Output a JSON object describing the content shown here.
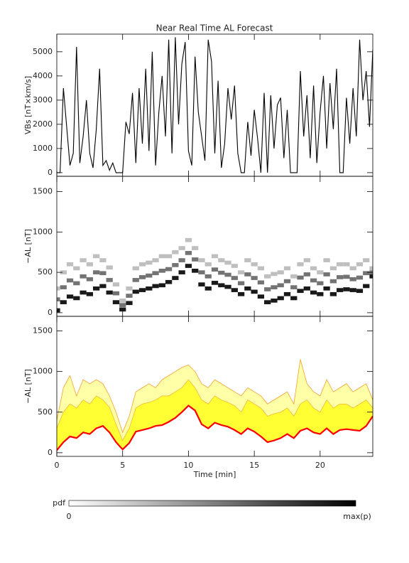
{
  "chart_data": [
    {
      "type": "line",
      "title": "Near Real Time AL Forecast",
      "ylabel": "VBs [nT×km/s]",
      "color": "#000000",
      "xlim": [
        0,
        24
      ],
      "xticks": [
        0,
        5,
        10,
        15,
        20
      ],
      "ylim": [
        -150,
        5730
      ],
      "yticks": [
        0,
        1000,
        2000,
        3000,
        4000,
        5000
      ],
      "x": [
        0,
        0.25,
        0.5,
        0.75,
        1,
        1.25,
        1.5,
        1.75,
        2,
        2.25,
        2.5,
        2.75,
        3,
        3.25,
        3.5,
        3.75,
        4,
        4.25,
        4.5,
        4.75,
        5,
        5.25,
        5.5,
        5.75,
        6,
        6.25,
        6.5,
        6.75,
        7,
        7.25,
        7.5,
        7.75,
        8,
        8.25,
        8.5,
        8.75,
        9,
        9.25,
        9.5,
        9.75,
        10,
        10.25,
        10.5,
        10.75,
        11,
        11.25,
        11.5,
        11.75,
        12,
        12.25,
        12.5,
        12.75,
        13,
        13.25,
        13.5,
        13.75,
        14,
        14.25,
        14.5,
        14.75,
        15,
        15.25,
        15.5,
        15.75,
        16,
        16.25,
        16.5,
        16.75,
        17,
        17.25,
        17.5,
        17.75,
        18,
        18.25,
        18.5,
        18.75,
        19,
        19.25,
        19.5,
        19.75,
        20,
        20.25,
        20.5,
        20.75,
        21,
        21.25,
        21.5,
        21.75,
        22,
        22.25,
        22.5,
        22.75,
        23,
        23.25,
        23.5,
        23.75,
        24
      ],
      "values": [
        0,
        0,
        3500,
        1900,
        300,
        800,
        5200,
        400,
        1500,
        3000,
        800,
        200,
        1800,
        4300,
        300,
        500,
        100,
        400,
        0,
        0,
        0,
        2100,
        1600,
        3300,
        400,
        3500,
        1200,
        4300,
        900,
        5000,
        300,
        2500,
        4000,
        1500,
        5500,
        800,
        5600,
        2000,
        4500,
        5400,
        900,
        300,
        4800,
        2500,
        1500,
        500,
        5500,
        4600,
        800,
        3800,
        200,
        1200,
        3500,
        2200,
        3600,
        800,
        0,
        0,
        2100,
        700,
        2600,
        1400,
        0,
        3300,
        0,
        3200,
        1000,
        2800,
        3100,
        600,
        2600,
        0,
        0,
        0,
        4200,
        1500,
        3200,
        600,
        3600,
        400,
        2500,
        4000,
        1000,
        3700,
        1800,
        4300,
        0,
        0,
        3100,
        1200,
        3500,
        1500,
        5500,
        3000,
        4200,
        1900,
        5100
      ]
    },
    {
      "type": "heatmap",
      "ylabel": "−AL [nT]",
      "xlim": [
        0,
        24
      ],
      "xticks": [
        0,
        5,
        10,
        15,
        20
      ],
      "ylim": [
        -45,
        1690
      ],
      "yticks": [
        0,
        500,
        1000,
        1500
      ],
      "x": [
        0,
        0.5,
        1,
        1.5,
        2,
        2.5,
        3,
        3.5,
        4,
        4.5,
        5,
        5.5,
        6,
        6.5,
        7,
        7.5,
        8,
        8.5,
        9,
        9.5,
        10,
        10.5,
        11,
        11.5,
        12,
        12.5,
        13,
        13.5,
        14,
        14.5,
        15,
        15.5,
        16,
        16.5,
        17,
        17.5,
        18,
        18.5,
        19,
        19.5,
        20,
        20.5,
        21,
        21.5,
        22,
        22.5,
        23,
        23.5,
        24
      ],
      "series": [
        {
          "density": 0.9,
          "values": [
            30,
            130,
            200,
            180,
            250,
            230,
            300,
            330,
            250,
            130,
            40,
            120,
            260,
            280,
            300,
            330,
            340,
            380,
            430,
            500,
            580,
            520,
            350,
            300,
            370,
            340,
            320,
            280,
            230,
            300,
            260,
            200,
            130,
            150,
            180,
            230,
            180,
            270,
            300,
            250,
            230,
            300,
            230,
            280,
            290,
            280,
            270,
            330,
            450
          ]
        },
        {
          "density": 0.55,
          "values": [
            165,
            315,
            400,
            365,
            450,
            415,
            500,
            490,
            405,
            240,
            95,
            210,
            405,
            440,
            460,
            490,
            520,
            540,
            590,
            650,
            740,
            660,
            500,
            450,
            535,
            495,
            470,
            430,
            365,
            475,
            430,
            375,
            290,
            315,
            340,
            390,
            315,
            435,
            475,
            400,
            365,
            475,
            390,
            440,
            445,
            415,
            435,
            490,
            500
          ]
        },
        {
          "density": 0.25,
          "values": [
            300,
            500,
            600,
            550,
            650,
            600,
            700,
            650,
            560,
            350,
            150,
            300,
            550,
            600,
            620,
            650,
            700,
            700,
            750,
            800,
            900,
            800,
            650,
            600,
            700,
            650,
            620,
            580,
            500,
            650,
            600,
            550,
            450,
            480,
            500,
            550,
            450,
            600,
            650,
            550,
            500,
            650,
            550,
            600,
            600,
            550,
            600,
            650,
            550
          ]
        }
      ]
    },
    {
      "type": "band",
      "ylabel": "−AL [nT]",
      "xlabel": "Time [min]",
      "xlim": [
        0,
        24
      ],
      "xticks": [
        0,
        5,
        10,
        15,
        20
      ],
      "ylim": [
        -45,
        1680
      ],
      "yticks": [
        0,
        500,
        1000,
        1500
      ],
      "median_color": "#ff0000",
      "band_color": "#ffff33",
      "outer_color": "#ffffa8",
      "edge_color": "#f0a030",
      "x": [
        0,
        0.5,
        1,
        1.5,
        2,
        2.5,
        3,
        3.5,
        4,
        4.5,
        5,
        5.5,
        6,
        6.5,
        7,
        7.5,
        8,
        8.5,
        9,
        9.5,
        10,
        10.5,
        11,
        11.5,
        12,
        12.5,
        13,
        13.5,
        14,
        14.5,
        15,
        15.5,
        16,
        16.5,
        17,
        17.5,
        18,
        18.5,
        19,
        19.5,
        20,
        20.5,
        21,
        21.5,
        22,
        22.5,
        23,
        23.5,
        24
      ],
      "median": [
        30,
        130,
        200,
        180,
        250,
        230,
        300,
        330,
        250,
        130,
        40,
        120,
        260,
        280,
        300,
        330,
        340,
        380,
        430,
        500,
        580,
        520,
        350,
        300,
        370,
        340,
        320,
        280,
        230,
        300,
        260,
        200,
        130,
        150,
        180,
        230,
        180,
        270,
        300,
        250,
        230,
        300,
        230,
        280,
        290,
        280,
        270,
        330,
        450
      ],
      "upper_band": [
        300,
        500,
        600,
        550,
        650,
        600,
        700,
        650,
        560,
        350,
        150,
        300,
        550,
        600,
        620,
        650,
        700,
        700,
        750,
        800,
        900,
        800,
        650,
        600,
        700,
        650,
        620,
        580,
        500,
        650,
        600,
        550,
        450,
        480,
        500,
        550,
        450,
        600,
        650,
        550,
        500,
        650,
        550,
        600,
        600,
        550,
        600,
        650,
        550
      ],
      "upper_outer": [
        400,
        800,
        950,
        700,
        900,
        850,
        900,
        850,
        700,
        500,
        250,
        450,
        750,
        800,
        850,
        800,
        900,
        950,
        1000,
        1050,
        1080,
        1000,
        850,
        800,
        900,
        850,
        800,
        750,
        700,
        800,
        750,
        700,
        600,
        650,
        700,
        750,
        600,
        1150,
        850,
        750,
        700,
        900,
        750,
        800,
        850,
        750,
        800,
        850,
        650
      ]
    }
  ],
  "colorbar": {
    "label": "pdf",
    "min_label": "0",
    "max_label": "max(p)"
  }
}
